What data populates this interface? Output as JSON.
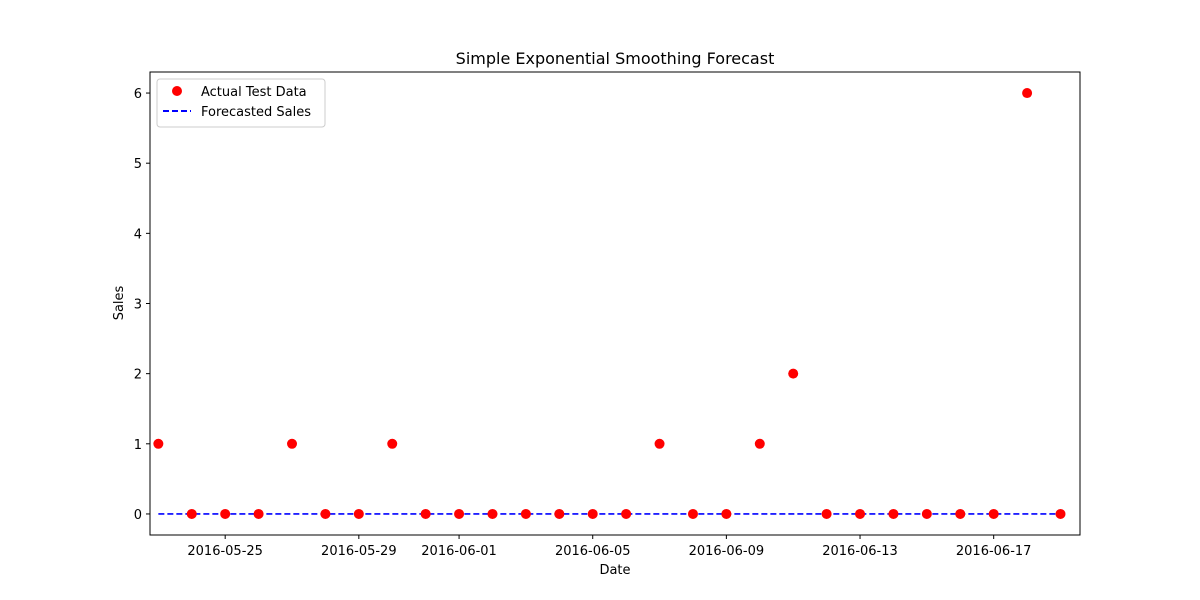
{
  "chart_data": {
    "type": "scatter",
    "title": "Simple Exponential Smoothing Forecast",
    "xlabel": "Date",
    "ylabel": "Sales",
    "x": [
      "2016-05-23",
      "2016-05-24",
      "2016-05-25",
      "2016-05-26",
      "2016-05-27",
      "2016-05-28",
      "2016-05-29",
      "2016-05-30",
      "2016-05-31",
      "2016-06-01",
      "2016-06-02",
      "2016-06-03",
      "2016-06-04",
      "2016-06-05",
      "2016-06-06",
      "2016-06-07",
      "2016-06-08",
      "2016-06-09",
      "2016-06-10",
      "2016-06-11",
      "2016-06-12",
      "2016-06-13",
      "2016-06-14",
      "2016-06-15",
      "2016-06-16",
      "2016-06-17",
      "2016-06-18",
      "2016-06-19"
    ],
    "series": [
      {
        "name": "Actual Test Data",
        "type": "scatter",
        "color": "#ff0000",
        "values": [
          1,
          0,
          0,
          0,
          1,
          0,
          0,
          1,
          0,
          0,
          0,
          0,
          0,
          0,
          0,
          1,
          0,
          0,
          1,
          2,
          0,
          0,
          0,
          0,
          0,
          0,
          6,
          0
        ]
      },
      {
        "name": "Forecasted Sales",
        "type": "line",
        "style": "dashed",
        "color": "#0000ff",
        "values": [
          0,
          0,
          0,
          0,
          0,
          0,
          0,
          0,
          0,
          0,
          0,
          0,
          0,
          0,
          0,
          0,
          0,
          0,
          0,
          0,
          0,
          0,
          0,
          0,
          0,
          0,
          0,
          0
        ]
      }
    ],
    "xticks": [
      "2016-05-25",
      "2016-05-29",
      "2016-06-01",
      "2016-06-05",
      "2016-06-09",
      "2016-06-13",
      "2016-06-17"
    ],
    "yticks": [
      "0",
      "1",
      "2",
      "3",
      "4",
      "5",
      "6"
    ],
    "ylim": [
      -0.3,
      6.3
    ],
    "xlim": [
      "2016-05-22T18:00",
      "2016-06-19T14:00"
    ],
    "grid": false,
    "legend_position": "upper left"
  }
}
